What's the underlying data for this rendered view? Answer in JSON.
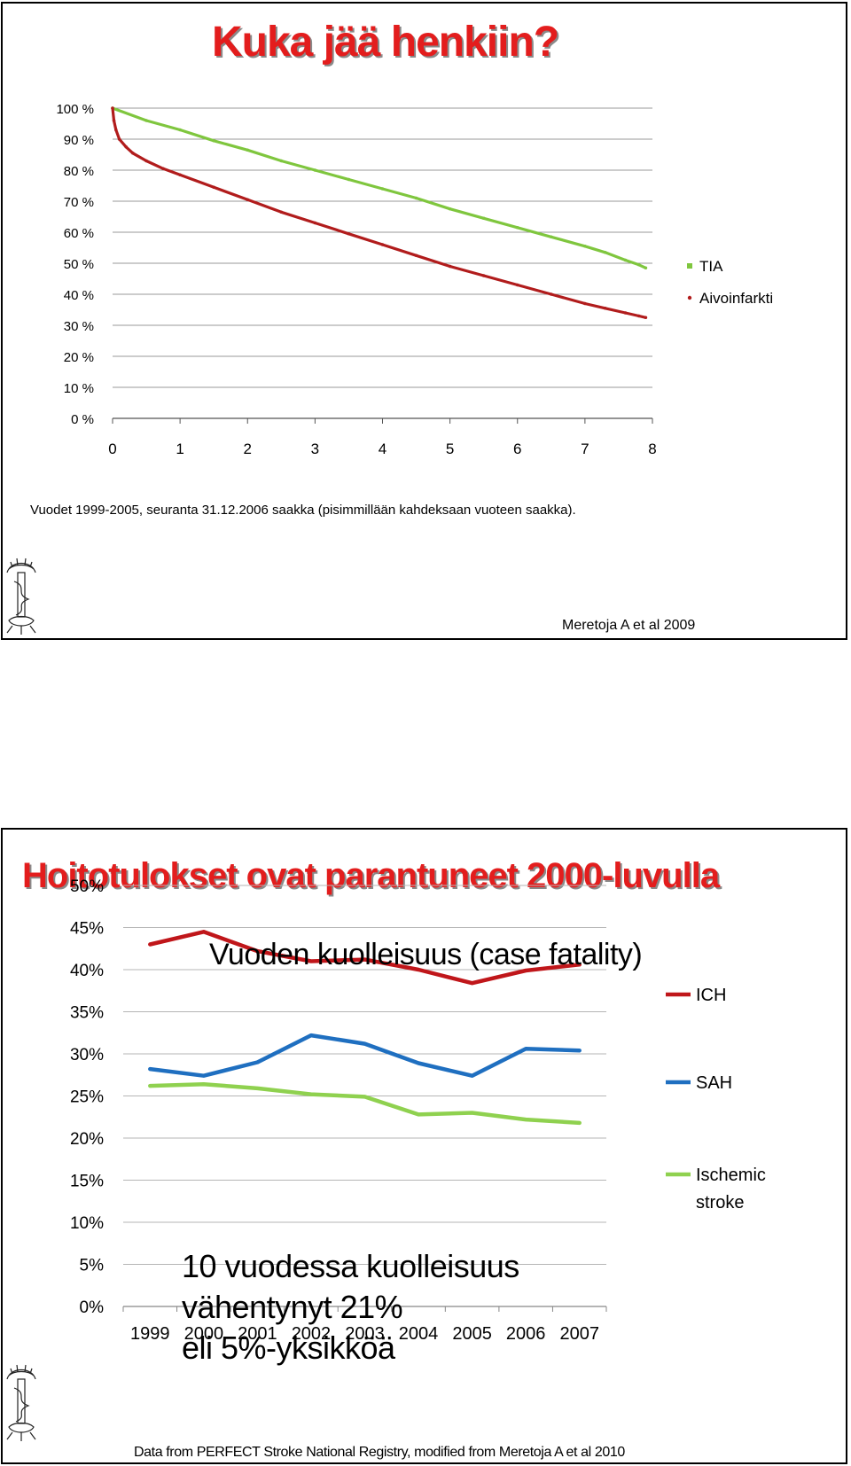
{
  "slide1": {
    "title": "Kuka jää henkiin?",
    "note": "Vuodet 1999-2005, seuranta 31.12.2006 saakka (pisimmillään kahdeksaan vuoteen saakka).",
    "source": "Meretoja A et al 2009"
  },
  "slide2": {
    "title": "Hoitotulokset ovat parantuneet 2000-luvulla",
    "subtitle": "Vuoden kuolleisuus (case fatality)",
    "annotation_lines": [
      "10 vuodessa kuolleisuus",
      "vähentynyt 21%",
      "eli 5%-yksikköä"
    ],
    "source": "Data from PERFECT Stroke National Registry, modified from Meretoja A et al 2010"
  },
  "chart_data": [
    {
      "type": "line",
      "title": "",
      "xlabel": "",
      "ylabel": "",
      "x_ticks": [
        0,
        1,
        2,
        3,
        4,
        5,
        6,
        7,
        8
      ],
      "y_ticks": [
        "0 %",
        "10 %",
        "20 %",
        "30 %",
        "40 %",
        "50 %",
        "60 %",
        "70 %",
        "80 %",
        "90 %",
        "100 %"
      ],
      "xlim": [
        0,
        8
      ],
      "ylim": [
        0,
        100
      ],
      "grid": true,
      "legend_position": "right",
      "series": [
        {
          "name": "TIA",
          "color": "#7fc63e",
          "x": [
            0,
            0.5,
            1,
            1.5,
            2,
            2.5,
            3,
            3.5,
            4,
            4.5,
            5,
            5.5,
            6,
            6.5,
            7,
            7.3,
            7.6,
            7.8,
            7.9
          ],
          "values": [
            100,
            96,
            93,
            89.5,
            86.5,
            83,
            80,
            77,
            74,
            71,
            67.5,
            64.5,
            61.5,
            58.5,
            55.5,
            53.5,
            51,
            49.5,
            48.5
          ]
        },
        {
          "name": "Aivoinfarkti",
          "color": "#b11c1c",
          "x": [
            0,
            0.02,
            0.05,
            0.1,
            0.2,
            0.3,
            0.5,
            0.75,
            1,
            1.5,
            2,
            2.5,
            3,
            3.5,
            4,
            4.5,
            5,
            5.5,
            6,
            6.5,
            7,
            7.3,
            7.6,
            7.8,
            7.9
          ],
          "values": [
            100,
            96,
            93,
            90,
            87.5,
            85.5,
            83,
            80.5,
            78.5,
            74.5,
            70.5,
            66.5,
            63,
            59.5,
            56,
            52.5,
            49,
            46,
            43,
            40,
            37,
            35.5,
            34,
            33,
            32.5
          ]
        }
      ]
    },
    {
      "type": "line",
      "title": "Vuoden kuolleisuus (case fatality)",
      "xlabel": "",
      "ylabel": "",
      "categories": [
        "1999",
        "2000",
        "2001",
        "2002",
        "2003",
        "2004",
        "2005",
        "2006",
        "2007"
      ],
      "y_ticks": [
        "0%",
        "5%",
        "10%",
        "15%",
        "20%",
        "25%",
        "30%",
        "35%",
        "40%",
        "45%",
        "50%"
      ],
      "ylim": [
        0,
        50
      ],
      "grid": true,
      "legend_position": "right",
      "series": [
        {
          "name": "ICH",
          "color": "#c0161a",
          "values": [
            43.0,
            44.5,
            42.2,
            41.0,
            41.2,
            40.0,
            38.4,
            39.9,
            40.6
          ]
        },
        {
          "name": "SAH",
          "color": "#1f6fc0",
          "values": [
            28.2,
            27.4,
            29.0,
            32.2,
            31.2,
            28.9,
            27.4,
            30.6,
            30.4
          ]
        },
        {
          "name": "Ischemic stroke",
          "color": "#8fd14f",
          "values": [
            26.2,
            26.4,
            25.9,
            25.2,
            24.9,
            22.8,
            23.0,
            22.2,
            21.8
          ]
        }
      ]
    }
  ]
}
